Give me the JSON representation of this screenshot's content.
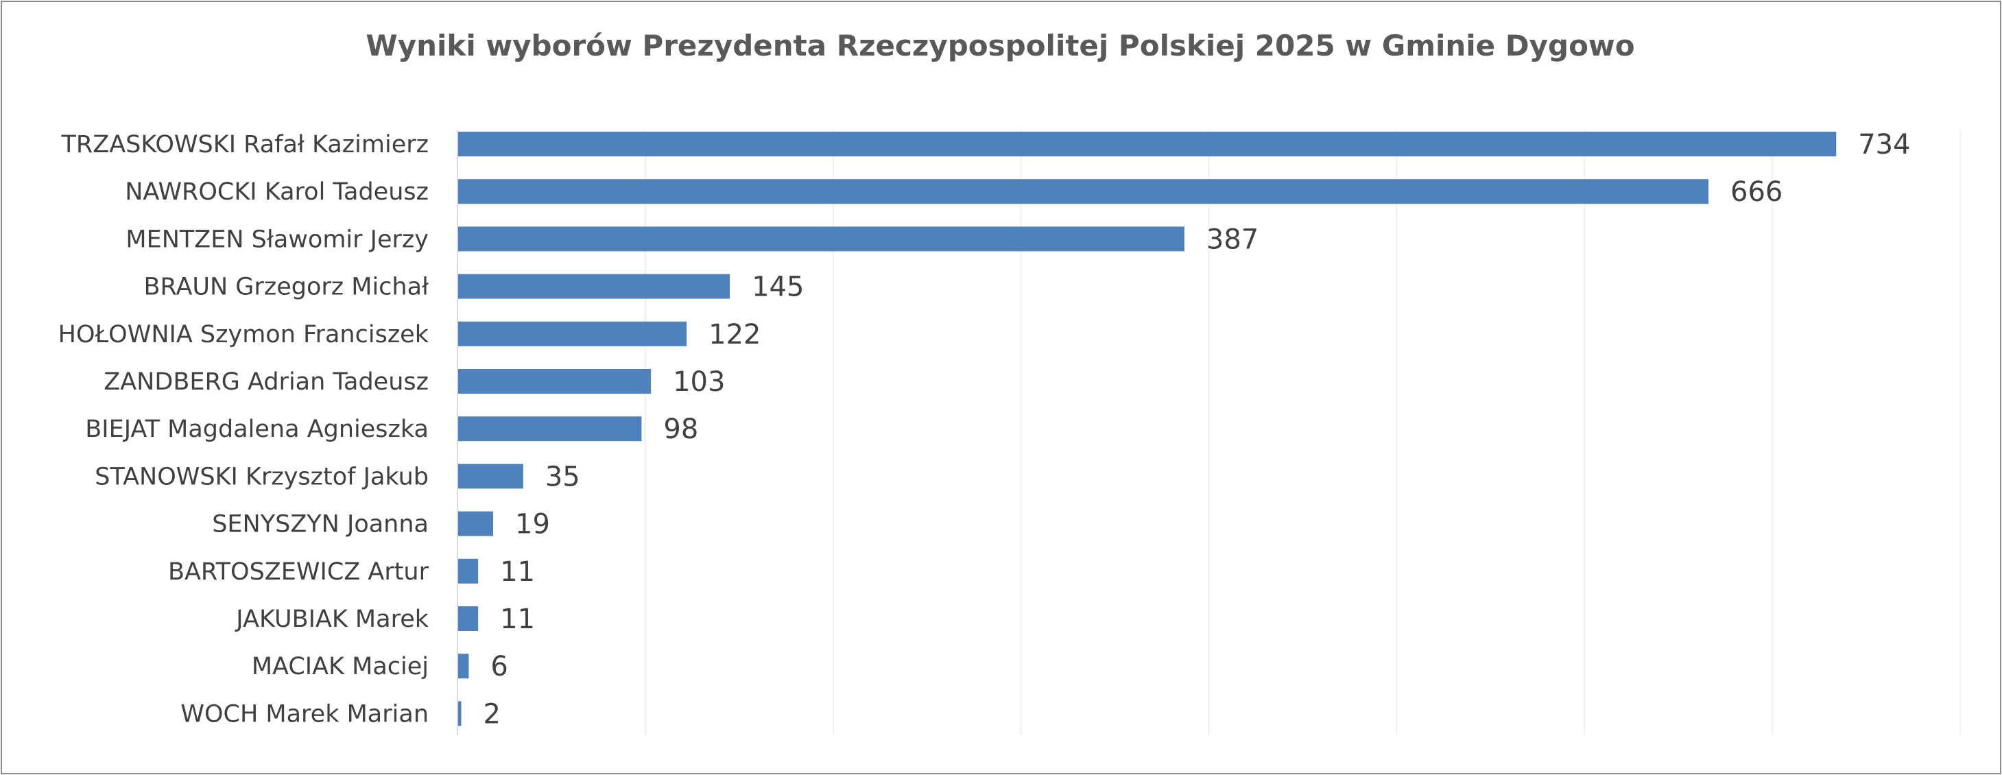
{
  "chart_data": {
    "type": "bar",
    "orientation": "horizontal",
    "title": "Wyniki wyborów Prezydenta Rzeczypospolitej Polskiej 2025 w Gminie Dygowo",
    "categories": [
      "TRZASKOWSKI Rafał Kazimierz",
      "NAWROCKI Karol Tadeusz",
      "MENTZEN Sławomir Jerzy",
      "BRAUN Grzegorz Michał",
      "HOŁOWNIA Szymon Franciszek",
      "ZANDBERG Adrian Tadeusz",
      "BIEJAT Magdalena Agnieszka",
      "STANOWSKI Krzysztof Jakub",
      "SENYSZYN Joanna",
      "BARTOSZEWICZ Artur",
      "JAKUBIAK Marek",
      "MACIAK Maciej",
      "WOCH Marek Marian"
    ],
    "values": [
      734,
      666,
      387,
      145,
      122,
      103,
      98,
      35,
      19,
      11,
      11,
      6,
      2
    ],
    "xlim": [
      0,
      800
    ],
    "x_gridlines": [
      100,
      200,
      300,
      400,
      500,
      600,
      700,
      800
    ],
    "grid": true,
    "legend": "none",
    "data_labels": true,
    "bar_color": "#4f81bd",
    "gridline_color": "#f0f0f0",
    "axis_color": "#d9d9d9",
    "text_color": "#404040",
    "title_color": "#595959"
  }
}
